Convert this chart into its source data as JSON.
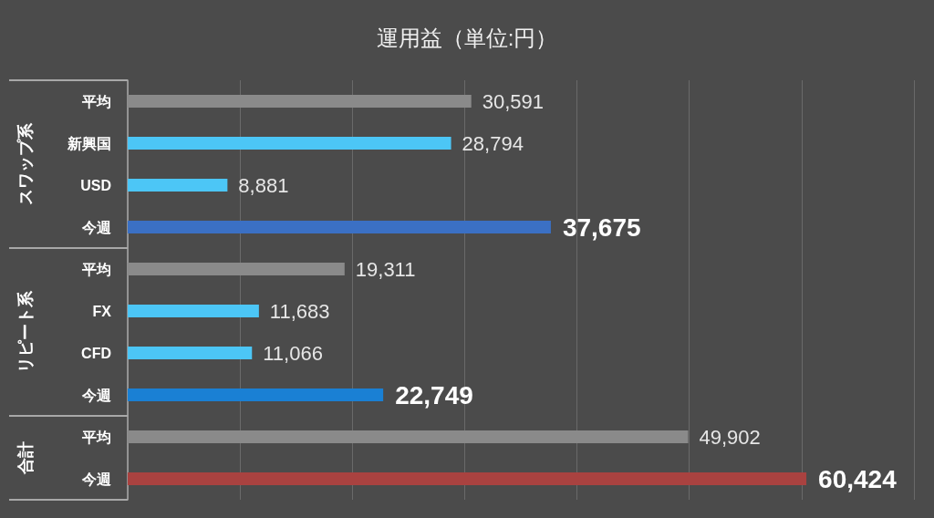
{
  "chart_data": {
    "type": "bar",
    "title": "運用益（単位:円）",
    "orientation": "horizontal",
    "categories": [
      "平均",
      "新興国",
      "USD",
      "今週",
      "平均",
      "FX",
      "CFD",
      "今週",
      "平均",
      "今週"
    ],
    "series": [
      {
        "colors": [
          "#8a8a8a",
          "#4cc6f6",
          "#4cc6f6",
          "#3b70c4",
          null,
          null,
          null,
          null,
          null,
          null
        ],
        "values": [
          30591,
          28794,
          8881,
          37675,
          null,
          null,
          null,
          null,
          null,
          null
        ],
        "value_labels": [
          "30,591",
          "28,794",
          "8,881",
          "37,675",
          null,
          null,
          null,
          null,
          null,
          null
        ]
      },
      {
        "colors": [
          null,
          null,
          null,
          null,
          "#8a8a8a",
          "#4cc6f6",
          "#4cc6f6",
          "#1a80d4",
          null,
          null
        ],
        "values": [
          null,
          null,
          null,
          null,
          19311,
          11683,
          11066,
          22749,
          null,
          null
        ],
        "value_labels": [
          null,
          null,
          null,
          null,
          "19,311",
          "11,683",
          "11,066",
          "22,749",
          null,
          null
        ]
      },
      {
        "colors": [
          null,
          null,
          null,
          null,
          null,
          null,
          null,
          null,
          "#8a8a8a",
          "#a94240"
        ],
        "values": [
          null,
          null,
          null,
          null,
          null,
          null,
          null,
          null,
          49902,
          60424
        ],
        "value_labels": [
          null,
          null,
          null,
          null,
          null,
          null,
          null,
          null,
          "49,902",
          "60,424"
        ]
      }
    ],
    "annotations": [
      "スワップ系",
      "リピート系",
      "合計"
    ],
    "grid": "x",
    "tick_labels": "y"
  }
}
